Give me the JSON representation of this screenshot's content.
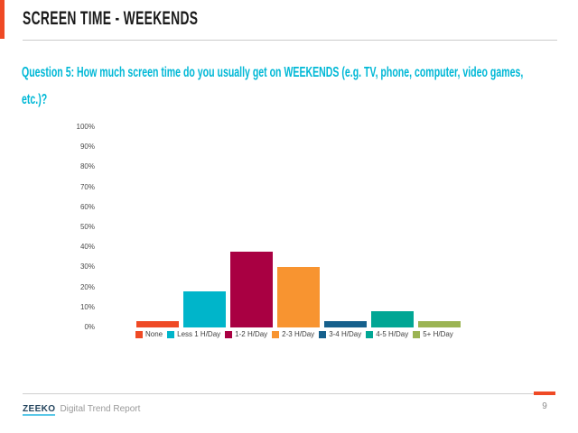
{
  "slide": {
    "title": "SCREEN TIME - WEEKENDS",
    "question": "Question 5: How much screen time do you usually get on WEEKENDS (e.g. TV, phone, computer, video games, etc.)?",
    "question_lines": [
      "Question 5: How much screen time do you usually get on WEEKENDS (e.g. TV, phone, computer, video games,",
      "etc.)?"
    ],
    "page_number": "9"
  },
  "footer": {
    "logo_text": "ZEEKO",
    "report_name": "Digital Trend Report"
  },
  "theme": {
    "accent_orange": "#EF4A25",
    "question_cyan": "#00B8D6",
    "title_color": "#1B1B1B",
    "divider_gray": "#CCCCCC",
    "footer_text_gray": "#9A9A9A",
    "logo_navy": "#24455E",
    "logo_underline_cyan": "#5BC8E8",
    "page_number_gray": "#8C8C8C"
  },
  "chart_data": {
    "type": "bar",
    "title": "",
    "xlabel": "",
    "ylabel": "",
    "unit": "%",
    "categories": [
      "None",
      "Less 1 H/Day",
      "1-2 H/Day",
      "2-3 H/Day",
      "3-4 H/Day",
      "4-5 H/Day",
      "5+ H/Day"
    ],
    "values": [
      3,
      18,
      38,
      30,
      3,
      8,
      3
    ],
    "series_colors": [
      "#EF4A25",
      "#00B5CA",
      "#A90042",
      "#F89430",
      "#16608C",
      "#01A694",
      "#9BB453"
    ],
    "ylim": [
      0,
      100
    ],
    "y_tick_step": 10,
    "y_tick_labels": [
      "0%",
      "10%",
      "20%",
      "30%",
      "40%",
      "50%",
      "60%",
      "70%",
      "80%",
      "90%",
      "100%"
    ],
    "grid": false,
    "legend_position": "bottom"
  }
}
